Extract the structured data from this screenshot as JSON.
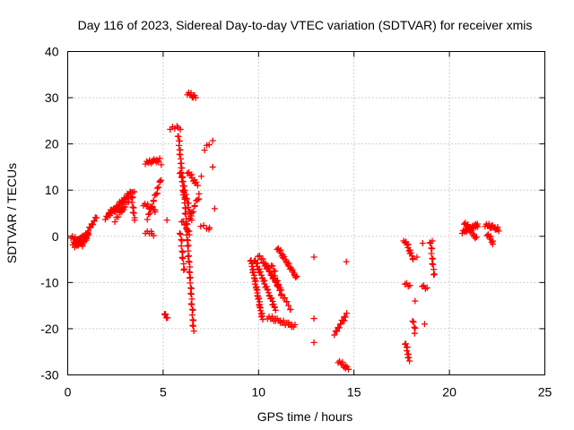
{
  "chart_data": {
    "type": "scatter",
    "title": "Day 116 of 2023, Sidereal Day-to-day VTEC variation (SDTVAR) for receiver xmis",
    "xlabel": "GPS time / hours",
    "ylabel": "SDTVAR / TECUs",
    "xlim": [
      0,
      25
    ],
    "ylim": [
      -30,
      40
    ],
    "xticks": [
      0,
      5,
      10,
      15,
      20,
      25
    ],
    "yticks": [
      -30,
      -20,
      -10,
      0,
      10,
      20,
      30,
      40
    ],
    "xtick_labels": [
      "0",
      "5",
      "10",
      "15",
      "20",
      "25"
    ],
    "ytick_labels": [
      "-30",
      "-20",
      "-10",
      "0",
      "10",
      "20",
      "30",
      "40"
    ],
    "grid": true,
    "marker": "+",
    "marker_color": "#ff0000",
    "segments": [
      {
        "x0": 0.3,
        "y0": -1.5,
        "x1": 1.1,
        "y1": 0.5,
        "n": 30
      },
      {
        "x0": 0.4,
        "y0": -2.0,
        "x1": 1.0,
        "y1": -0.5,
        "n": 20
      },
      {
        "x0": 0.2,
        "y0": 0.0,
        "x1": 0.8,
        "y1": -2.0,
        "n": 12
      },
      {
        "x0": 1.1,
        "y0": 1.5,
        "x1": 1.5,
        "y1": 4.0,
        "n": 10
      },
      {
        "x0": 2.0,
        "y0": 4.0,
        "x1": 3.2,
        "y1": 9.0,
        "n": 30
      },
      {
        "x0": 2.2,
        "y0": 5.5,
        "x1": 3.0,
        "y1": 6.0,
        "n": 14
      },
      {
        "x0": 2.5,
        "y0": 3.5,
        "x1": 3.5,
        "y1": 10.0,
        "n": 16
      },
      {
        "x0": 3.3,
        "y0": 10.0,
        "x1": 3.5,
        "y1": 4.0,
        "n": 10
      },
      {
        "x0": 4.1,
        "y0": 1.0,
        "x1": 4.5,
        "y1": 0.5,
        "n": 6
      },
      {
        "x0": 4.0,
        "y0": 7.0,
        "x1": 4.6,
        "y1": 5.5,
        "n": 12
      },
      {
        "x0": 4.1,
        "y0": 16.0,
        "x1": 4.8,
        "y1": 16.5,
        "n": 14
      },
      {
        "x0": 4.2,
        "y0": 4.0,
        "x1": 4.9,
        "y1": 12.5,
        "n": 16
      },
      {
        "x0": 5.4,
        "y0": 23.5,
        "x1": 5.9,
        "y1": 23.5,
        "n": 6
      },
      {
        "x0": 5.8,
        "y0": 22.0,
        "x1": 6.1,
        "y1": 8.0,
        "n": 25
      },
      {
        "x0": 5.9,
        "y0": 14.0,
        "x1": 6.5,
        "y1": 3.5,
        "n": 20
      },
      {
        "x0": 6.1,
        "y0": 10.0,
        "x1": 6.6,
        "y1": -20.5,
        "n": 45
      },
      {
        "x0": 6.3,
        "y0": 14.0,
        "x1": 6.8,
        "y1": 11.0,
        "n": 10
      },
      {
        "x0": 6.3,
        "y0": 3.0,
        "x1": 6.9,
        "y1": 9.0,
        "n": 12
      },
      {
        "x0": 5.9,
        "y0": 1.0,
        "x1": 6.1,
        "y1": -7.5,
        "n": 12
      },
      {
        "x0": 6.0,
        "y0": 3.5,
        "x1": 6.4,
        "y1": 0.5,
        "n": 8
      },
      {
        "x0": 6.3,
        "y0": 31.0,
        "x1": 6.7,
        "y1": 30.0,
        "n": 10
      },
      {
        "x0": 5.1,
        "y0": -16.5,
        "x1": 5.2,
        "y1": -18.0,
        "n": 4
      },
      {
        "x0": 7.0,
        "y0": 2.5,
        "x1": 7.4,
        "y1": 1.5,
        "n": 4
      },
      {
        "x0": 7.2,
        "y0": 19.0,
        "x1": 7.4,
        "y1": 20.0,
        "n": 3
      },
      {
        "x0": 9.6,
        "y0": -5.0,
        "x1": 10.2,
        "y1": -18.0,
        "n": 35
      },
      {
        "x0": 9.8,
        "y0": -5.0,
        "x1": 10.9,
        "y1": -16.0,
        "n": 30
      },
      {
        "x0": 10.0,
        "y0": -4.0,
        "x1": 11.1,
        "y1": -11.0,
        "n": 18
      },
      {
        "x0": 10.3,
        "y0": -5.5,
        "x1": 11.7,
        "y1": -16.0,
        "n": 22
      },
      {
        "x0": 10.7,
        "y0": -6.0,
        "x1": 11.2,
        "y1": -13.0,
        "n": 12
      },
      {
        "x0": 10.5,
        "y0": -17.5,
        "x1": 11.9,
        "y1": -19.5,
        "n": 24
      },
      {
        "x0": 11.0,
        "y0": -2.5,
        "x1": 12.0,
        "y1": -9.0,
        "n": 24
      },
      {
        "x0": 14.0,
        "y0": -21.0,
        "x1": 14.6,
        "y1": -17.0,
        "n": 14
      },
      {
        "x0": 14.2,
        "y0": -27.0,
        "x1": 14.7,
        "y1": -28.8,
        "n": 10
      },
      {
        "x0": 17.7,
        "y0": -1.0,
        "x1": 18.1,
        "y1": -5.0,
        "n": 12
      },
      {
        "x0": 17.7,
        "y0": -23.0,
        "x1": 17.9,
        "y1": -27.0,
        "n": 10
      },
      {
        "x0": 17.7,
        "y0": -10.0,
        "x1": 17.9,
        "y1": -11.0,
        "n": 4
      },
      {
        "x0": 18.6,
        "y0": -10.5,
        "x1": 18.8,
        "y1": -11.5,
        "n": 4
      },
      {
        "x0": 19.0,
        "y0": -1.0,
        "x1": 19.2,
        "y1": -8.5,
        "n": 12
      },
      {
        "x0": 18.1,
        "y0": -18.0,
        "x1": 18.2,
        "y1": -21.0,
        "n": 5
      },
      {
        "x0": 20.7,
        "y0": 1.0,
        "x1": 21.5,
        "y1": 2.5,
        "n": 22
      },
      {
        "x0": 20.8,
        "y0": 3.0,
        "x1": 21.4,
        "y1": -0.5,
        "n": 14
      },
      {
        "x0": 21.9,
        "y0": 2.5,
        "x1": 22.6,
        "y1": 1.5,
        "n": 16
      },
      {
        "x0": 22.0,
        "y0": 0.5,
        "x1": 22.3,
        "y1": -1.5,
        "n": 8
      }
    ],
    "isolated_points": [
      {
        "x": 3.4,
        "y": 8.5
      },
      {
        "x": 3.5,
        "y": 3.5
      },
      {
        "x": 4.9,
        "y": 15.5
      },
      {
        "x": 5.2,
        "y": 3.5
      },
      {
        "x": 5.1,
        "y": -17.0
      },
      {
        "x": 7.6,
        "y": 20.7
      },
      {
        "x": 7.6,
        "y": 15.0
      },
      {
        "x": 7.7,
        "y": 6.0
      },
      {
        "x": 7.0,
        "y": 13.0
      },
      {
        "x": 7.4,
        "y": 1.5
      },
      {
        "x": 12.9,
        "y": -4.5
      },
      {
        "x": 12.9,
        "y": -17.8
      },
      {
        "x": 12.9,
        "y": -23.0
      },
      {
        "x": 14.6,
        "y": -5.5
      },
      {
        "x": 17.6,
        "y": -1.0
      },
      {
        "x": 18.2,
        "y": -14.0
      },
      {
        "x": 18.6,
        "y": -1.5
      },
      {
        "x": 18.7,
        "y": -19.0
      },
      {
        "x": 19.1,
        "y": -1.0
      },
      {
        "x": 18.3,
        "y": -4.5
      }
    ]
  }
}
